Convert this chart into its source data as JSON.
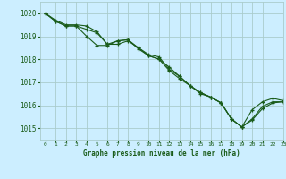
{
  "title": "Graphe pression niveau de la mer (hPa)",
  "background_color": "#cceeff",
  "grid_color": "#aacccc",
  "line_color": "#1a5c1a",
  "xlim": [
    -0.5,
    23
  ],
  "ylim": [
    1014.5,
    1020.5
  ],
  "yticks": [
    1015,
    1016,
    1017,
    1018,
    1019,
    1020
  ],
  "xticks": [
    0,
    1,
    2,
    3,
    4,
    5,
    6,
    7,
    8,
    9,
    10,
    11,
    12,
    13,
    14,
    15,
    16,
    17,
    18,
    19,
    20,
    21,
    22,
    23
  ],
  "series": [
    [
      1020.0,
      1019.7,
      1019.5,
      1019.5,
      1019.45,
      1019.2,
      1018.65,
      1018.65,
      1018.8,
      1018.5,
      1018.15,
      1018.0,
      1017.65,
      1017.25,
      1016.85,
      1016.5,
      1016.35,
      1016.1,
      1015.4,
      1015.05,
      1015.4,
      1015.95,
      1016.15,
      1016.15
    ],
    [
      1020.0,
      1019.65,
      1019.45,
      1019.45,
      1019.0,
      1018.6,
      1018.6,
      1018.8,
      1018.85,
      1018.45,
      1018.15,
      1018.0,
      1017.5,
      1017.15,
      1016.85,
      1016.55,
      1016.35,
      1016.1,
      1015.4,
      1015.05,
      1015.35,
      1015.85,
      1016.1,
      1016.15
    ],
    [
      1020.0,
      1019.65,
      1019.45,
      1019.45,
      1019.3,
      1019.15,
      1018.65,
      1018.8,
      1018.85,
      1018.5,
      1018.2,
      1018.1,
      1017.55,
      1017.25,
      1016.85,
      1016.55,
      1016.35,
      1016.1,
      1015.4,
      1015.05,
      1015.8,
      1016.15,
      1016.3,
      1016.2
    ]
  ]
}
